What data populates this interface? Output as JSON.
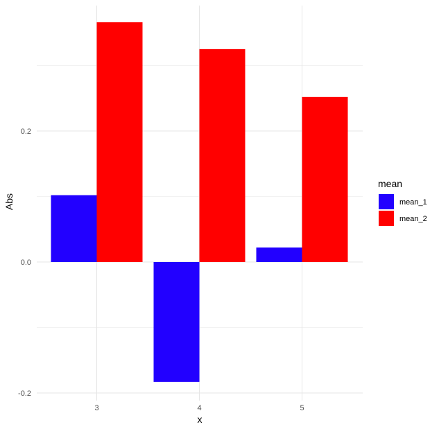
{
  "chart_data": {
    "type": "bar",
    "title": "",
    "xlabel": "x",
    "ylabel": "Abs",
    "categories": [
      "3",
      "4",
      "5"
    ],
    "series": [
      {
        "name": "mean_1",
        "color": "#2200ff",
        "values": [
          0.102,
          -0.183,
          0.022
        ]
      },
      {
        "name": "mean_2",
        "color": "#ff0000",
        "values": [
          0.366,
          0.325,
          0.252
        ]
      }
    ],
    "ylim": [
      -0.2,
      0.39
    ],
    "y_ticks": [
      -0.2,
      0.0,
      0.2
    ],
    "y_tick_labels": [
      "-0.2",
      "0.0",
      "0.2"
    ],
    "grid": true,
    "legend": {
      "title": "mean",
      "position": "right"
    }
  }
}
